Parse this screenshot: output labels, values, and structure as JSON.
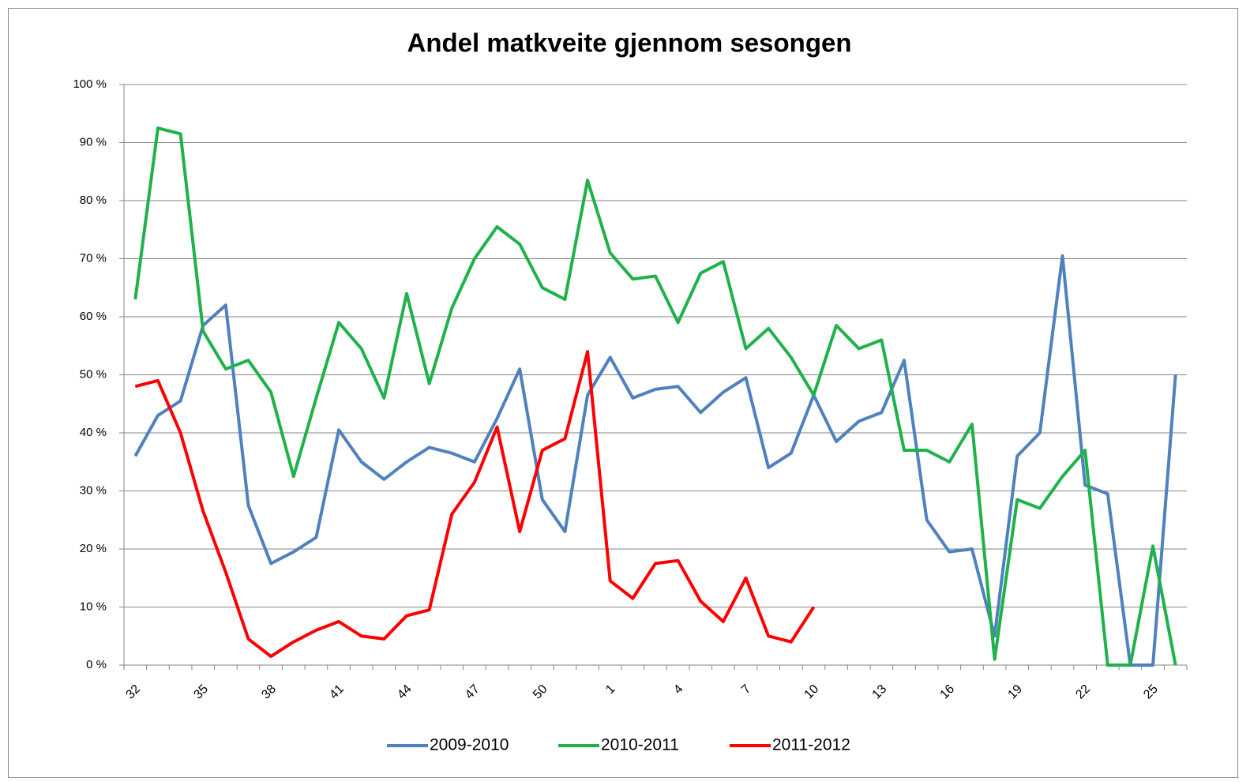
{
  "chart_data": {
    "type": "line",
    "title": "Andel matkveite gjennom sesongen",
    "categories": [
      "32",
      null,
      null,
      "35",
      null,
      null,
      "38",
      null,
      null,
      "41",
      null,
      null,
      "44",
      null,
      null,
      "47",
      null,
      null,
      "50",
      null,
      null,
      "1",
      null,
      null,
      "4",
      null,
      null,
      "7",
      null,
      null,
      "10",
      null,
      null,
      "13",
      null,
      null,
      "16",
      null,
      null,
      "19",
      null,
      null,
      "22",
      null,
      null,
      "25",
      null
    ],
    "ylim": [
      0,
      100
    ],
    "yticks": [
      {
        "value": 0,
        "label": "0 %"
      },
      {
        "value": 10,
        "label": "10 %"
      },
      {
        "value": 20,
        "label": "20 %"
      },
      {
        "value": 30,
        "label": "30 %"
      },
      {
        "value": 40,
        "label": "40 %"
      },
      {
        "value": 50,
        "label": "50 %"
      },
      {
        "value": 60,
        "label": "60 %"
      },
      {
        "value": 70,
        "label": "70 %"
      },
      {
        "value": 80,
        "label": "80 %"
      },
      {
        "value": 90,
        "label": "90 %"
      },
      {
        "value": 100,
        "label": "100 %"
      }
    ],
    "grid": true,
    "legend": "bottom",
    "series": [
      {
        "name": "2009-2010",
        "color": "#4f81bd",
        "values": [
          36,
          43,
          45.5,
          58.5,
          62,
          27.5,
          17.5,
          19.5,
          22,
          40.5,
          35,
          32,
          35,
          37.5,
          36.5,
          35,
          42.5,
          51,
          28.5,
          23,
          46.5,
          53,
          46,
          47.5,
          48,
          43.5,
          47,
          49.5,
          34,
          36.5,
          46.5,
          38.5,
          42,
          43.5,
          52.5,
          25,
          19.5,
          20,
          5,
          36,
          40,
          70.5,
          31,
          29.5,
          0,
          0,
          50
        ]
      },
      {
        "name": "2010-2011",
        "color": "#1fb24a",
        "values": [
          63,
          92.5,
          91.5,
          57.5,
          51,
          52.5,
          47,
          32.5,
          46,
          59,
          54.5,
          46,
          64,
          48.5,
          61.5,
          70,
          75.5,
          72.5,
          65,
          63,
          83.5,
          71,
          66.5,
          67,
          59,
          67.5,
          69.5,
          54.5,
          58,
          53,
          46.5,
          58.5,
          54.5,
          56,
          37,
          37,
          35,
          41.5,
          1,
          28.5,
          27,
          32.5,
          37,
          0,
          0,
          20.5,
          0
        ]
      },
      {
        "name": "2011-2012",
        "color": "#ff0000",
        "values": [
          48,
          49,
          40,
          26.5,
          16,
          4.5,
          1.5,
          4,
          6,
          7.5,
          5,
          4.5,
          8.5,
          9.5,
          26,
          31.5,
          41,
          23,
          37,
          39,
          54,
          14.5,
          11.5,
          17.5,
          18,
          11,
          7.5,
          15,
          5,
          4,
          10,
          null,
          null,
          null,
          null,
          null,
          null,
          null,
          null,
          null,
          null,
          null,
          null,
          null,
          null,
          null,
          null
        ]
      }
    ]
  }
}
